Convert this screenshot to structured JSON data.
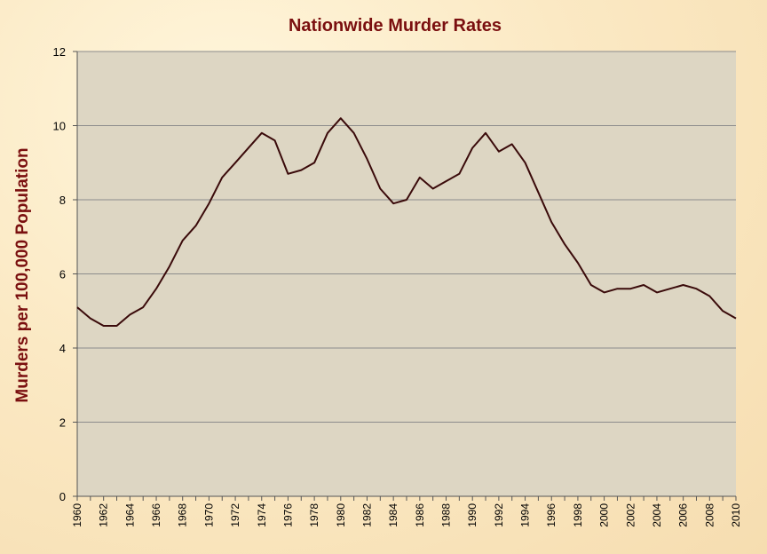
{
  "chart_data": {
    "type": "line",
    "title": "Nationwide Murder Rates",
    "xlabel": "",
    "ylabel": "Murders per 100,000 Population",
    "ylim": [
      0,
      12
    ],
    "yticks": [
      "0",
      "2",
      "4",
      "6",
      "8",
      "10",
      "12"
    ],
    "xlim": [
      1960,
      2010
    ],
    "xticks": [
      "1960",
      "1962",
      "1964",
      "1966",
      "1968",
      "1970",
      "1972",
      "1974",
      "1976",
      "1978",
      "1980",
      "1982",
      "1984",
      "1986",
      "1988",
      "1990",
      "1992",
      "1994",
      "1996",
      "1998",
      "2000",
      "2002",
      "2004",
      "2006",
      "2008",
      "2010"
    ],
    "grid": true,
    "legend": "none",
    "colors": {
      "line": "#3a0a0a",
      "plot_bg": "#ddd6c3",
      "title": "#7a0f0f",
      "grid": "#8c8c8c"
    },
    "series": [
      {
        "x": [
          1960,
          1961,
          1962,
          1963,
          1964,
          1965,
          1966,
          1967,
          1968,
          1969,
          1970,
          1971,
          1972,
          1973,
          1974,
          1975,
          1976,
          1977,
          1978,
          1979,
          1980,
          1981,
          1982,
          1983,
          1984,
          1985,
          1986,
          1987,
          1988,
          1989,
          1990,
          1991,
          1992,
          1993,
          1994,
          1995,
          1996,
          1997,
          1998,
          1999,
          2000,
          2001,
          2002,
          2003,
          2004,
          2005,
          2006,
          2007,
          2008,
          2009,
          2010
        ],
        "values": [
          5.1,
          4.8,
          4.6,
          4.6,
          4.9,
          5.1,
          5.6,
          6.2,
          6.9,
          7.3,
          7.9,
          8.6,
          9.0,
          9.4,
          9.8,
          9.6,
          8.7,
          8.8,
          9.0,
          9.8,
          10.2,
          9.8,
          9.1,
          8.3,
          7.9,
          8.0,
          8.6,
          8.3,
          8.5,
          8.7,
          9.4,
          9.8,
          9.3,
          9.5,
          9.0,
          8.2,
          7.4,
          6.8,
          6.3,
          5.7,
          5.5,
          5.6,
          5.6,
          5.7,
          5.5,
          5.6,
          5.7,
          5.6,
          5.4,
          5.0,
          4.8
        ]
      }
    ]
  }
}
